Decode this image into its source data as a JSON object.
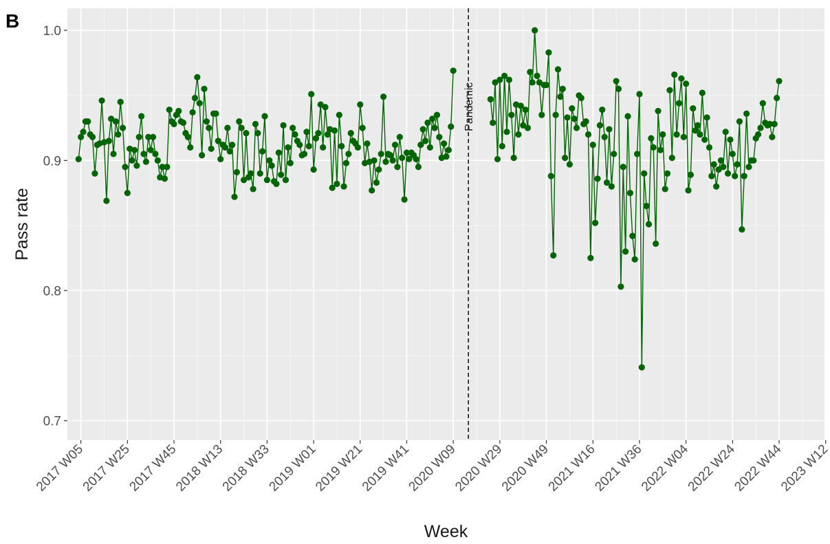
{
  "panel_tag": "B",
  "chart_data": {
    "type": "line",
    "title": "",
    "xlabel": "Week",
    "ylabel": "Pass rate",
    "x_ticks": [
      "2017 W05",
      "2017 W25",
      "2017 W45",
      "2018 W13",
      "2018 W33",
      "2019 W01",
      "2019 W21",
      "2019 W41",
      "2020 W09",
      "2020 W29",
      "2020 W49",
      "2021 W16",
      "2021 W36",
      "2022 W04",
      "2022 W24",
      "2022 W44",
      "2023 W12"
    ],
    "y_ticks": [
      0.7,
      0.8,
      0.9,
      1.0
    ],
    "y_tick_labels": [
      "0.7",
      "0.8",
      "0.9",
      "1.0"
    ],
    "ylim": [
      0.685,
      1.017
    ],
    "x_index_range": [
      -1.8,
      323.5
    ],
    "grid": true,
    "background": "#ebebeb",
    "series_color": "#006400",
    "annotation": {
      "label": "Pandemic",
      "x_week_index": 170.5,
      "line_style": "dashed"
    },
    "series": [
      {
        "segments": [
          {
            "start_week": "2017 W04",
            "values": [
              0.901,
              0.918,
              0.922,
              0.93,
              0.93,
              0.92,
              0.918,
              0.89,
              0.912,
              0.913,
              0.946,
              0.914,
              0.869,
              0.915,
              0.932,
              0.905,
              0.93,
              0.92,
              0.945,
              0.925,
              0.895,
              0.875,
              0.909,
              0.9,
              0.908,
              0.896,
              0.918,
              0.934,
              0.905,
              0.899,
              0.918,
              0.908,
              0.918,
              0.905,
              0.9,
              0.887,
              0.895,
              0.886,
              0.895,
              0.939,
              0.93,
              0.928,
              0.935,
              0.938,
              0.93,
              0.929,
              0.921,
              0.918,
              0.91,
              0.937,
              0.948,
              0.964,
              0.944,
              0.904,
              0.955,
              0.93,
              0.925,
              0.909,
              0.936,
              0.936,
              0.915,
              0.901,
              0.912,
              0.91,
              0.925,
              0.907,
              0.912,
              0.872,
              0.891,
              0.93,
              0.925,
              0.885,
              0.921,
              0.887,
              0.89,
              0.878,
              0.928,
              0.921,
              0.89,
              0.907,
              0.934,
              0.885,
              0.9,
              0.896,
              0.884,
              0.882,
              0.906,
              0.889,
              0.927,
              0.885,
              0.91,
              0.898,
              0.925,
              0.92,
              0.915,
              0.912,
              0.904,
              0.905,
              0.922,
              0.911,
              0.951,
              0.893,
              0.917,
              0.921,
              0.943,
              0.91,
              0.941,
              0.92,
              0.924,
              0.879,
              0.923,
              0.882,
              0.935,
              0.911,
              0.88,
              0.898,
              0.905,
              0.921,
              0.915,
              0.913,
              0.91,
              0.943,
              0.925,
              0.898,
              0.913,
              0.899,
              0.877,
              0.9,
              0.883,
              0.893,
              0.905,
              0.949,
              0.899,
              0.905,
              0.904,
              0.9,
              0.912,
              0.895,
              0.918,
              0.902,
              0.87,
              0.906,
              0.901,
              0.906,
              0.904,
              0.901,
              0.895,
              0.912,
              0.924,
              0.915,
              0.929,
              0.91,
              0.932,
              0.925,
              0.935,
              0.918,
              0.902,
              0.913,
              0.903,
              0.908,
              0.926,
              0.969
            ]
          },
          {
            "start_week": "2020 W25",
            "values": [
              0.947,
              0.929,
              0.96,
              0.901,
              0.962,
              0.911,
              0.965,
              0.922,
              0.962,
              0.935,
              0.902,
              0.943,
              0.92,
              0.942,
              0.927,
              0.939,
              0.925,
              0.968,
              0.96,
              1.0,
              0.965,
              0.96,
              0.935,
              0.958,
              0.958,
              0.983,
              0.888,
              0.827,
              0.935,
              0.97,
              0.949,
              0.955,
              0.902,
              0.933,
              0.897,
              0.94,
              0.932,
              0.925,
              0.95,
              0.948,
              0.928,
              0.93,
              0.92,
              0.825,
              0.912,
              0.852,
              0.886,
              0.927,
              0.939,
              0.918,
              0.883,
              0.924,
              0.88,
              0.905,
              0.961,
              0.955,
              0.803,
              0.895,
              0.83,
              0.934,
              0.875,
              0.842,
              0.824,
              0.905,
              0.951,
              0.741,
              0.89,
              0.865,
              0.851,
              0.917,
              0.91,
              0.836,
              0.938,
              0.908,
              0.92,
              0.878,
              0.89
            ]
          },
          {
            "start_week": "2021 W49",
            "values": [
              0.954,
              0.902,
              0.966,
              0.92,
              0.944,
              0.963,
              0.918,
              0.959,
              0.877,
              0.889,
              0.94,
              0.923,
              0.927,
              0.92,
              0.952,
              0.916,
              0.933,
              0.91,
              0.888,
              0.897,
              0.88,
              0.893,
              0.9,
              0.895,
              0.922,
              0.89,
              0.916,
              0.905,
              0.888,
              0.897,
              0.93,
              0.847,
              0.888,
              0.936,
              0.895,
              0.9,
              0.9,
              0.917,
              0.92,
              0.925,
              0.944,
              0.929,
              0.927,
              0.928,
              0.918,
              0.928,
              0.948,
              0.961
            ]
          }
        ]
      }
    ]
  }
}
